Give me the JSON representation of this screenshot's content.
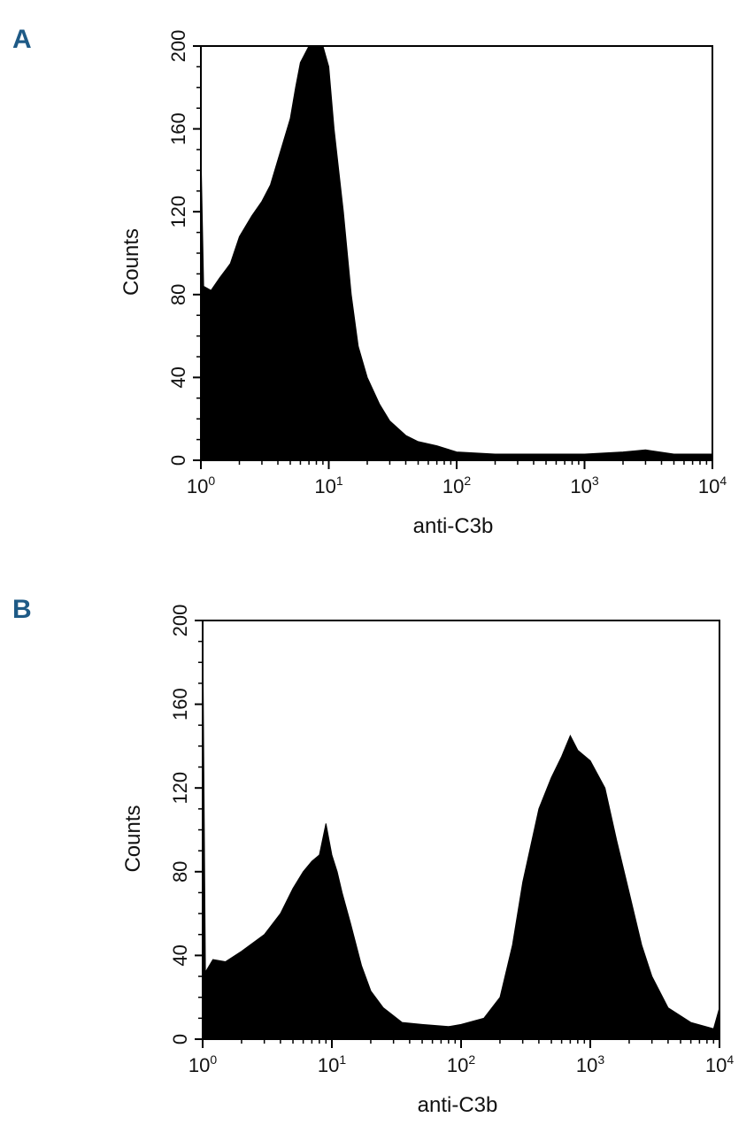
{
  "figure": {
    "panels": [
      {
        "letter": "A"
      },
      {
        "letter": "B"
      }
    ],
    "colors": {
      "panel_letter": "#1e5a86",
      "fill": "#000000",
      "axis": "#000000"
    }
  },
  "chart_data": [
    {
      "type": "area",
      "title": "",
      "xlabel": "anti-C3b",
      "ylabel": "Counts",
      "xscale": "log",
      "xlim": [
        1,
        10000
      ],
      "ylim": [
        0,
        200
      ],
      "xticks": [
        1,
        10,
        100,
        1000,
        10000
      ],
      "xtick_labels": [
        {
          "base": "10",
          "exp": "0"
        },
        {
          "base": "10",
          "exp": "1"
        },
        {
          "base": "10",
          "exp": "2"
        },
        {
          "base": "10",
          "exp": "3"
        },
        {
          "base": "10",
          "exp": "4"
        }
      ],
      "yticks": [
        0,
        40,
        80,
        120,
        160,
        200
      ],
      "ytick_labels": [
        "0",
        "40",
        "80",
        "120",
        "160",
        "200"
      ],
      "grid": false,
      "series": [
        {
          "values": [
            {
              "x": 1.0,
              "y": 150
            },
            {
              "x": 1.05,
              "y": 84
            },
            {
              "x": 1.2,
              "y": 82
            },
            {
              "x": 1.4,
              "y": 88
            },
            {
              "x": 1.7,
              "y": 95
            },
            {
              "x": 2.0,
              "y": 108
            },
            {
              "x": 2.5,
              "y": 118
            },
            {
              "x": 3.0,
              "y": 125
            },
            {
              "x": 3.5,
              "y": 133
            },
            {
              "x": 4.0,
              "y": 145
            },
            {
              "x": 5.0,
              "y": 165
            },
            {
              "x": 5.5,
              "y": 180
            },
            {
              "x": 6.0,
              "y": 192
            },
            {
              "x": 7.0,
              "y": 200
            },
            {
              "x": 9.0,
              "y": 200
            },
            {
              "x": 10.0,
              "y": 190
            },
            {
              "x": 11.0,
              "y": 160
            },
            {
              "x": 13.0,
              "y": 120
            },
            {
              "x": 15.0,
              "y": 80
            },
            {
              "x": 17.0,
              "y": 55
            },
            {
              "x": 20.0,
              "y": 40
            },
            {
              "x": 25.0,
              "y": 27
            },
            {
              "x": 30.0,
              "y": 19
            },
            {
              "x": 40.0,
              "y": 12
            },
            {
              "x": 50.0,
              "y": 9
            },
            {
              "x": 70.0,
              "y": 7
            },
            {
              "x": 100.0,
              "y": 4
            },
            {
              "x": 200.0,
              "y": 3
            },
            {
              "x": 500.0,
              "y": 3
            },
            {
              "x": 1000.0,
              "y": 3
            },
            {
              "x": 2000.0,
              "y": 4
            },
            {
              "x": 3000.0,
              "y": 5
            },
            {
              "x": 5000.0,
              "y": 3
            },
            {
              "x": 10000.0,
              "y": 3
            }
          ]
        }
      ]
    },
    {
      "type": "area",
      "title": "",
      "xlabel": "anti-C3b",
      "ylabel": "Counts",
      "xscale": "log",
      "xlim": [
        1,
        10000
      ],
      "ylim": [
        0,
        200
      ],
      "xticks": [
        1,
        10,
        100,
        1000,
        10000
      ],
      "xtick_labels": [
        {
          "base": "10",
          "exp": "0"
        },
        {
          "base": "10",
          "exp": "1"
        },
        {
          "base": "10",
          "exp": "2"
        },
        {
          "base": "10",
          "exp": "3"
        },
        {
          "base": "10",
          "exp": "4"
        }
      ],
      "yticks": [
        0,
        40,
        80,
        120,
        160,
        200
      ],
      "ytick_labels": [
        "0",
        "40",
        "80",
        "120",
        "160",
        "200"
      ],
      "grid": false,
      "series": [
        {
          "values": [
            {
              "x": 1.0,
              "y": 200
            },
            {
              "x": 1.05,
              "y": 32
            },
            {
              "x": 1.2,
              "y": 38
            },
            {
              "x": 1.5,
              "y": 37
            },
            {
              "x": 2.0,
              "y": 42
            },
            {
              "x": 3.0,
              "y": 50
            },
            {
              "x": 4.0,
              "y": 60
            },
            {
              "x": 5.0,
              "y": 72
            },
            {
              "x": 6.0,
              "y": 80
            },
            {
              "x": 7.0,
              "y": 85
            },
            {
              "x": 8.0,
              "y": 88
            },
            {
              "x": 9.0,
              "y": 103
            },
            {
              "x": 10.0,
              "y": 88
            },
            {
              "x": 11.0,
              "y": 80
            },
            {
              "x": 12.0,
              "y": 70
            },
            {
              "x": 14.0,
              "y": 55
            },
            {
              "x": 17.0,
              "y": 35
            },
            {
              "x": 20.0,
              "y": 23
            },
            {
              "x": 25.0,
              "y": 15
            },
            {
              "x": 35.0,
              "y": 8
            },
            {
              "x": 50.0,
              "y": 7
            },
            {
              "x": 80.0,
              "y": 6
            },
            {
              "x": 100.0,
              "y": 7
            },
            {
              "x": 150.0,
              "y": 10
            },
            {
              "x": 200.0,
              "y": 20
            },
            {
              "x": 250.0,
              "y": 45
            },
            {
              "x": 300.0,
              "y": 75
            },
            {
              "x": 400.0,
              "y": 110
            },
            {
              "x": 500.0,
              "y": 125
            },
            {
              "x": 600.0,
              "y": 135
            },
            {
              "x": 700.0,
              "y": 145
            },
            {
              "x": 800.0,
              "y": 138
            },
            {
              "x": 1000.0,
              "y": 133
            },
            {
              "x": 1300.0,
              "y": 120
            },
            {
              "x": 1600.0,
              "y": 95
            },
            {
              "x": 2000.0,
              "y": 70
            },
            {
              "x": 2500.0,
              "y": 45
            },
            {
              "x": 3000.0,
              "y": 30
            },
            {
              "x": 4000.0,
              "y": 15
            },
            {
              "x": 6000.0,
              "y": 8
            },
            {
              "x": 9000.0,
              "y": 5
            },
            {
              "x": 10000.0,
              "y": 15
            }
          ]
        }
      ]
    }
  ]
}
